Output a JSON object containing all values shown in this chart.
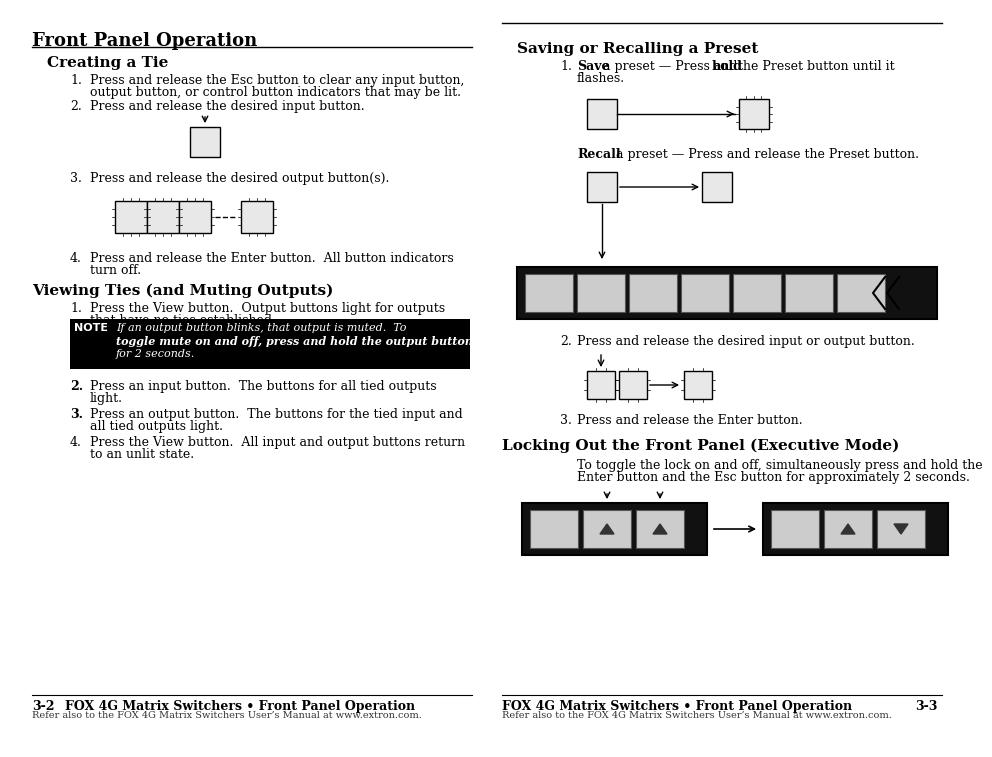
{
  "page_title": "Front Panel Operation",
  "bg_color": "#ffffff",
  "left": {
    "s1_title": "Creating a Tie",
    "s1_items": [
      "Press and release the Esc button to clear any input button,\noutput button, or control button indicators that may be lit.",
      "Press and release the desired input button.",
      "Press and release the desired output button(s).",
      "Press and release the Enter button.  All button indicators\nturn off."
    ],
    "s2_title": "Viewing Ties (and Muting Outputs)",
    "s2_items": [
      "Press the View button.  Output buttons light for outputs\nthat have no ties established.",
      "Press an input button.  The buttons for all tied outputs\nlight.",
      "Press an output button.  The buttons for the tied input and\nall tied outputs light.",
      "Press the View button.  All input and output buttons return\nto an unlit state."
    ],
    "note_line1": "If an output button blinks, that output is muted.  To",
    "note_line2": "toggle mute on and off, press and hold the output button",
    "note_line3": "for 2 seconds."
  },
  "right": {
    "s1_title": "Saving or Recalling a Preset",
    "s2_title": "Locking Out the Front Panel (Executive Mode)",
    "lock_text1": "To toggle the lock on and off, simultaneously press and hold the",
    "lock_text2": "Enter button and the Esc button for approximately 2 seconds."
  },
  "footer_left_page": "3-2",
  "footer_left_bold": "FOX 4G Matrix Switchers • Front Panel Operation",
  "footer_left_ref": "Refer also to the FOX 4G Matrix Switchers User’s Manual at www.extron.com.",
  "footer_right_bold": "FOX 4G Matrix Switchers • Front Panel Operation",
  "footer_right_page": "3-3",
  "footer_right_ref": "Refer also to the FOX 4G Matrix Switchers User’s Manual at www.extron.com."
}
